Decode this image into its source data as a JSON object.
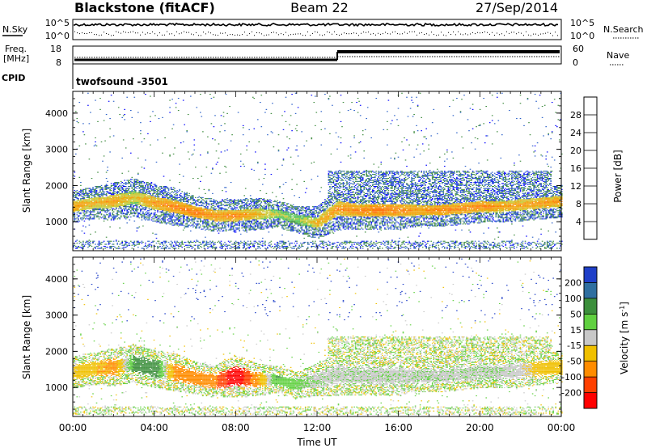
{
  "header": {
    "station": "Blackstone (fitACF)",
    "beam": "Beam 22",
    "date": "27/Sep/2014"
  },
  "panels": {
    "nsky": {
      "label": "N.Sky",
      "tick_top": "10^5",
      "tick_bottom": "10^0"
    },
    "nsearch": {
      "label": "N.Search",
      "tick_top": "10^5",
      "tick_bottom": "10^0"
    },
    "freq": {
      "label_line1": "Freq.",
      "label_line2": "[MHz]",
      "tick_top": "18",
      "tick_bottom": "8"
    },
    "nave": {
      "label": "Nave",
      "tick_top": "60",
      "tick_bottom": "0"
    },
    "cpid": {
      "label": "CPID",
      "text": "twofsound  -3501"
    }
  },
  "chart_data": [
    {
      "type": "heatmap",
      "name": "power",
      "ylabel": "Slant Range [km]",
      "ylim": [
        200,
        4600
      ],
      "yticks": [
        "1000",
        "2000",
        "3000",
        "4000"
      ],
      "ytick_values": [
        1000,
        2000,
        3000,
        4000
      ],
      "xlim": [
        0,
        24
      ],
      "colorbar": {
        "label": "Power [dB]",
        "ticks": [
          "4",
          "8",
          "12",
          "16",
          "20",
          "24",
          "28"
        ],
        "tick_values": [
          4,
          8,
          12,
          16,
          20,
          24,
          28
        ],
        "colors": [
          "#0000ff",
          "#2a5fc8",
          "#3d8a3d",
          "#52c452",
          "#c8c830",
          "#f0a000",
          "#ff7000",
          "#ff0000"
        ],
        "range": [
          0,
          32
        ]
      },
      "bands": [
        {
          "t": 0.0,
          "center": 1400,
          "width": 300,
          "peak": 26
        },
        {
          "t": 1.0,
          "center": 1500,
          "width": 300,
          "peak": 24
        },
        {
          "t": 2.0,
          "center": 1550,
          "width": 350,
          "peak": 25
        },
        {
          "t": 3.0,
          "center": 1650,
          "width": 350,
          "peak": 22
        },
        {
          "t": 4.0,
          "center": 1500,
          "width": 350,
          "peak": 26
        },
        {
          "t": 5.0,
          "center": 1400,
          "width": 350,
          "peak": 27
        },
        {
          "t": 6.0,
          "center": 1250,
          "width": 300,
          "peak": 28
        },
        {
          "t": 7.0,
          "center": 1150,
          "width": 300,
          "peak": 26
        },
        {
          "t": 8.0,
          "center": 1150,
          "width": 300,
          "peak": 27
        },
        {
          "t": 9.0,
          "center": 1200,
          "width": 300,
          "peak": 24
        },
        {
          "t": 10.0,
          "center": 1200,
          "width": 250,
          "peak": 20
        },
        {
          "t": 11.0,
          "center": 1050,
          "width": 250,
          "peak": 18
        },
        {
          "t": 12.0,
          "center": 950,
          "width": 300,
          "peak": 24
        },
        {
          "t": 13.0,
          "center": 1350,
          "width": 400,
          "peak": 26
        },
        {
          "t": 14.0,
          "center": 1300,
          "width": 350,
          "peak": 27
        },
        {
          "t": 15.0,
          "center": 1300,
          "width": 350,
          "peak": 28
        },
        {
          "t": 16.0,
          "center": 1300,
          "width": 350,
          "peak": 27
        },
        {
          "t": 17.0,
          "center": 1300,
          "width": 300,
          "peak": 26
        },
        {
          "t": 18.0,
          "center": 1300,
          "width": 300,
          "peak": 27
        },
        {
          "t": 19.0,
          "center": 1350,
          "width": 300,
          "peak": 27
        },
        {
          "t": 20.0,
          "center": 1400,
          "width": 300,
          "peak": 27
        },
        {
          "t": 21.0,
          "center": 1400,
          "width": 300,
          "peak": 26
        },
        {
          "t": 22.0,
          "center": 1450,
          "width": 300,
          "peak": 25
        },
        {
          "t": 23.0,
          "center": 1500,
          "width": 300,
          "peak": 26
        },
        {
          "t": 24.0,
          "center": 1550,
          "width": 300,
          "peak": 26
        }
      ]
    },
    {
      "type": "heatmap",
      "name": "velocity",
      "ylabel": "Slant Range [km]",
      "ylim": [
        200,
        4600
      ],
      "yticks": [
        "1000",
        "2000",
        "3000",
        "4000"
      ],
      "ytick_values": [
        1000,
        2000,
        3000,
        4000
      ],
      "xlim": [
        0,
        24
      ],
      "xticks": [
        "00:00",
        "04:00",
        "08:00",
        "12:00",
        "16:00",
        "20:00",
        "00:00"
      ],
      "xtick_values": [
        0,
        4,
        8,
        12,
        16,
        20,
        24
      ],
      "xlabel": "Time UT",
      "colorbar": {
        "label": "Velocity [m s^-1]",
        "ticks": [
          "200",
          "100",
          "50",
          "15",
          "-15",
          "-50",
          "-100",
          "-200"
        ],
        "colors": [
          "#1f3fc8",
          "#2f6fa0",
          "#3c8f3c",
          "#60d040",
          "#c8c8c8",
          "#f0c000",
          "#ff8c00",
          "#ff4000",
          "#ff0000"
        ]
      },
      "bands": [
        {
          "t": 0.0,
          "center": 1400,
          "width": 300,
          "vel": -20
        },
        {
          "t": 1.0,
          "center": 1500,
          "width": 300,
          "vel": -40
        },
        {
          "t": 2.0,
          "center": 1550,
          "width": 350,
          "vel": -60
        },
        {
          "t": 3.0,
          "center": 1650,
          "width": 350,
          "vel": 40
        },
        {
          "t": 4.0,
          "center": 1500,
          "width": 350,
          "vel": 60
        },
        {
          "t": 5.0,
          "center": 1400,
          "width": 350,
          "vel": -60
        },
        {
          "t": 6.0,
          "center": 1250,
          "width": 300,
          "vel": -80
        },
        {
          "t": 7.0,
          "center": 1150,
          "width": 300,
          "vel": -90
        },
        {
          "t": 8.0,
          "center": 1300,
          "width": 400,
          "vel": -200
        },
        {
          "t": 9.0,
          "center": 1200,
          "width": 300,
          "vel": -60
        },
        {
          "t": 10.0,
          "center": 1200,
          "width": 250,
          "vel": 30
        },
        {
          "t": 11.0,
          "center": 1050,
          "width": 250,
          "vel": 10
        },
        {
          "t": 12.0,
          "center": 1200,
          "width": 300,
          "vel": 0
        },
        {
          "t": 13.0,
          "center": 1350,
          "width": 400,
          "vel": 0
        },
        {
          "t": 14.0,
          "center": 1300,
          "width": 350,
          "vel": 0
        },
        {
          "t": 15.0,
          "center": 1300,
          "width": 350,
          "vel": 0
        },
        {
          "t": 16.0,
          "center": 1300,
          "width": 350,
          "vel": 0
        },
        {
          "t": 17.0,
          "center": 1300,
          "width": 300,
          "vel": 0
        },
        {
          "t": 18.0,
          "center": 1300,
          "width": 300,
          "vel": 0
        },
        {
          "t": 19.0,
          "center": 1350,
          "width": 300,
          "vel": 0
        },
        {
          "t": 20.0,
          "center": 1400,
          "width": 300,
          "vel": 0
        },
        {
          "t": 21.0,
          "center": 1400,
          "width": 300,
          "vel": 0
        },
        {
          "t": 22.0,
          "center": 1450,
          "width": 300,
          "vel": -5
        },
        {
          "t": 23.0,
          "center": 1500,
          "width": 300,
          "vel": -30
        },
        {
          "t": 24.0,
          "center": 1550,
          "width": 300,
          "vel": -40
        }
      ]
    }
  ]
}
